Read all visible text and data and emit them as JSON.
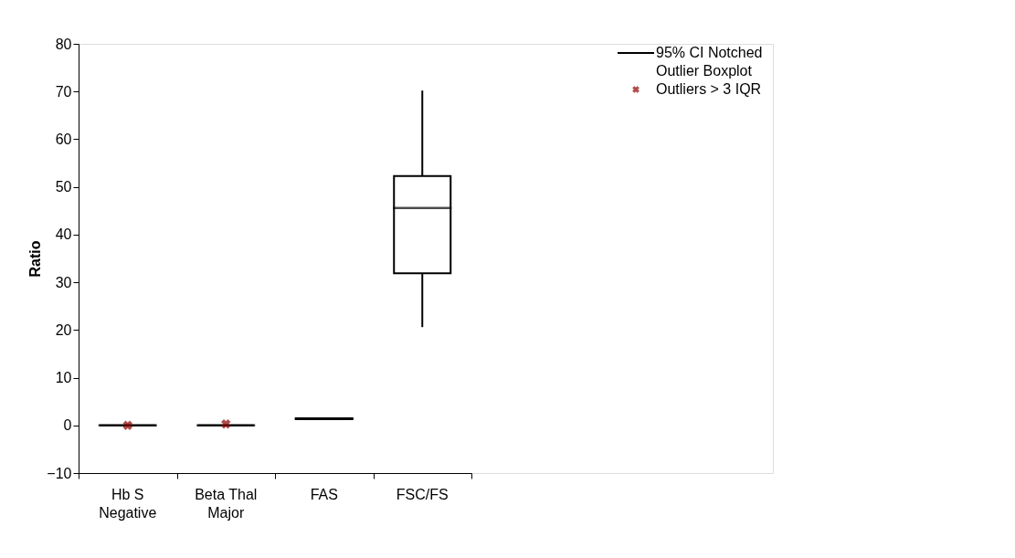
{
  "chart_data": {
    "type": "box",
    "ylabel": "Ratio",
    "categories": [
      "Hb S Negative",
      "Beta Thal Major",
      "FAS",
      "FSC/FS"
    ],
    "ylim": [
      -10,
      80
    ],
    "yticks": [
      -10,
      0,
      10,
      20,
      30,
      40,
      50,
      60,
      70,
      80
    ],
    "grid": false,
    "legend": "top right",
    "series": [
      {
        "name": "95% CI Notched Outlier Boxplot",
        "color": "#000000",
        "boxes": [
          {
            "low": 0,
            "q1": 0,
            "median": 0,
            "q3": 0,
            "high": 0
          },
          {
            "low": 0,
            "q1": 0,
            "median": 0,
            "q3": 0,
            "high": 0
          },
          {
            "low": 1.2,
            "q1": 1.3,
            "median": 1.4,
            "q3": 1.5,
            "high": 1.6
          },
          {
            "low": 20.6,
            "q1": 31.9,
            "median": 45.6,
            "q3": 52.3,
            "high": 70.2
          }
        ]
      },
      {
        "name": "Outliers > 3 IQR",
        "type": "scatter",
        "color": "#8b0000",
        "marker": "cross",
        "x": [
          "Hb S Negative",
          "Beta Thal Major"
        ],
        "values": [
          0,
          0.3
        ]
      }
    ]
  }
}
